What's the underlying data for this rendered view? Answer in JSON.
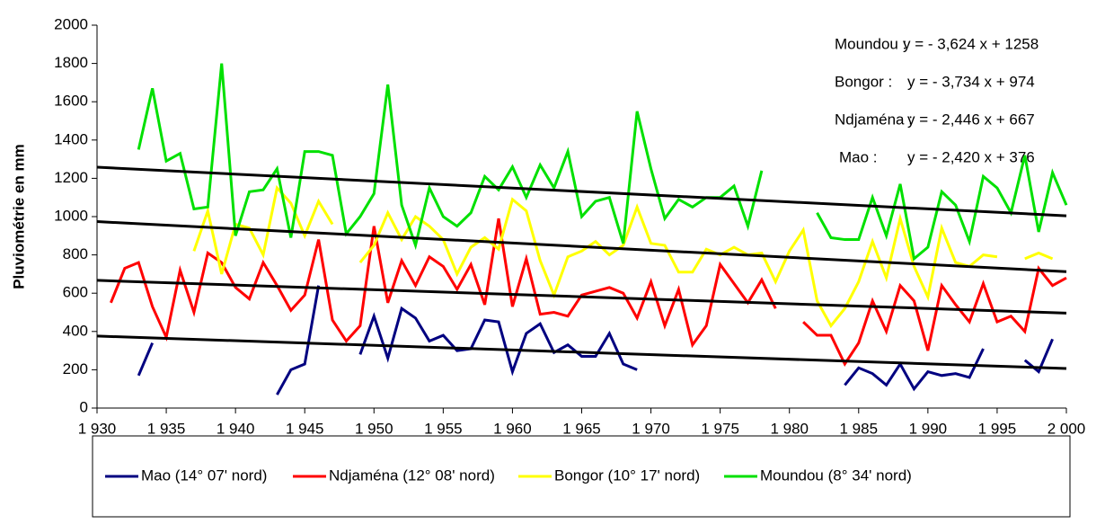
{
  "chart_data": {
    "type": "line",
    "ylabel": "Pluviométrie en mm",
    "x": [
      1930,
      1931,
      1932,
      1933,
      1934,
      1935,
      1936,
      1937,
      1938,
      1939,
      1940,
      1941,
      1942,
      1943,
      1944,
      1945,
      1946,
      1947,
      1948,
      1949,
      1950,
      1951,
      1952,
      1953,
      1954,
      1955,
      1956,
      1957,
      1958,
      1959,
      1960,
      1961,
      1962,
      1963,
      1964,
      1965,
      1966,
      1967,
      1968,
      1969,
      1970,
      1971,
      1972,
      1973,
      1974,
      1975,
      1976,
      1977,
      1978,
      1979,
      1980,
      1981,
      1982,
      1983,
      1984,
      1985,
      1986,
      1987,
      1988,
      1989,
      1990,
      1991,
      1992,
      1993,
      1994,
      1995,
      1996,
      1997,
      1998,
      1999,
      2000
    ],
    "xlim": [
      1930,
      2000
    ],
    "xticks": [
      {
        "value": 1930,
        "label": "1 930"
      },
      {
        "value": 1935,
        "label": "1 935"
      },
      {
        "value": 1940,
        "label": "1 940"
      },
      {
        "value": 1945,
        "label": "1 945"
      },
      {
        "value": 1950,
        "label": "1 950"
      },
      {
        "value": 1955,
        "label": "1 955"
      },
      {
        "value": 1960,
        "label": "1 960"
      },
      {
        "value": 1965,
        "label": "1 965"
      },
      {
        "value": 1970,
        "label": "1 970"
      },
      {
        "value": 1975,
        "label": "1 975"
      },
      {
        "value": 1980,
        "label": "1 980"
      },
      {
        "value": 1985,
        "label": "1 985"
      },
      {
        "value": 1990,
        "label": "1 990"
      },
      {
        "value": 1995,
        "label": "1 995"
      },
      {
        "value": 2000,
        "label": "2 000"
      }
    ],
    "ylim": [
      0,
      2000
    ],
    "yticks": [
      0,
      200,
      400,
      600,
      800,
      1000,
      1200,
      1400,
      1600,
      1800,
      2000
    ],
    "grid": false,
    "series": [
      {
        "name": "Mao (14° 07' nord)",
        "color": "#000080",
        "trend": {
          "label": "Mao :",
          "equation": "y = - 2,420 x + 376",
          "slope": -2.42,
          "intercept": 376
        },
        "values": [
          null,
          null,
          null,
          170,
          340,
          null,
          null,
          null,
          null,
          null,
          null,
          null,
          null,
          70,
          200,
          230,
          640,
          null,
          null,
          280,
          480,
          260,
          520,
          470,
          350,
          380,
          300,
          310,
          460,
          450,
          190,
          390,
          440,
          290,
          330,
          270,
          270,
          390,
          230,
          200,
          null,
          null,
          null,
          null,
          null,
          null,
          null,
          null,
          null,
          null,
          null,
          null,
          null,
          null,
          120,
          210,
          180,
          120,
          230,
          100,
          190,
          170,
          180,
          160,
          310,
          null,
          null,
          250,
          190,
          360,
          null
        ]
      },
      {
        "name": "Ndjaména (12° 08' nord)",
        "color": "#ff0000",
        "trend": {
          "label": "Ndjaména :",
          "equation": "y = - 2,446 x + 667",
          "slope": -2.446,
          "intercept": 667
        },
        "values": [
          null,
          550,
          730,
          760,
          530,
          370,
          720,
          500,
          810,
          760,
          630,
          570,
          760,
          640,
          510,
          590,
          880,
          460,
          350,
          430,
          950,
          550,
          770,
          640,
          790,
          740,
          620,
          750,
          540,
          990,
          530,
          780,
          490,
          500,
          480,
          590,
          610,
          630,
          600,
          470,
          660,
          430,
          620,
          330,
          430,
          750,
          650,
          550,
          670,
          520,
          null,
          450,
          380,
          380,
          230,
          340,
          560,
          400,
          640,
          560,
          300,
          640,
          540,
          450,
          650,
          450,
          480,
          400,
          730,
          640,
          680
        ]
      },
      {
        "name": "Bongor (10° 17' nord)",
        "color": "#ffff00",
        "trend": {
          "label": "Bongor :",
          "equation": "y = - 3,734 x + 974",
          "slope": -3.734,
          "intercept": 974
        },
        "values": [
          null,
          null,
          null,
          null,
          null,
          null,
          null,
          820,
          1030,
          700,
          960,
          940,
          800,
          1150,
          1070,
          900,
          1080,
          960,
          null,
          760,
          850,
          1020,
          880,
          1000,
          950,
          880,
          700,
          840,
          890,
          830,
          1090,
          1030,
          770,
          590,
          790,
          820,
          870,
          800,
          850,
          1050,
          860,
          850,
          710,
          710,
          830,
          800,
          840,
          800,
          810,
          660,
          820,
          930,
          560,
          430,
          520,
          660,
          870,
          680,
          990,
          740,
          580,
          940,
          760,
          740,
          800,
          790,
          null,
          780,
          810,
          780,
          null
        ]
      },
      {
        "name": "Moundou (8° 34' nord)",
        "color": "#00e000",
        "trend": {
          "label": "Moundou :",
          "equation": "y = - 3,624 x + 1258",
          "slope": -3.624,
          "intercept": 1258
        },
        "values": [
          null,
          null,
          null,
          1350,
          1670,
          1290,
          1330,
          1040,
          1050,
          1800,
          900,
          1130,
          1140,
          1250,
          890,
          1340,
          1340,
          1320,
          910,
          1000,
          1120,
          1690,
          1060,
          850,
          1150,
          1000,
          950,
          1020,
          1210,
          1140,
          1260,
          1100,
          1270,
          1150,
          1340,
          1000,
          1080,
          1100,
          860,
          1550,
          1250,
          990,
          1090,
          1050,
          1100,
          1100,
          1160,
          950,
          1240,
          null,
          null,
          null,
          1020,
          890,
          880,
          880,
          1100,
          900,
          1170,
          780,
          840,
          1130,
          1060,
          870,
          1210,
          1150,
          1020,
          1320,
          920,
          1230,
          1060
        ]
      }
    ]
  }
}
